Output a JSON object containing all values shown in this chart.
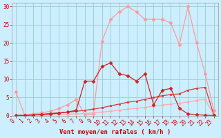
{
  "xlabel": "Vent moyen/en rafales ( km/h )",
  "bg_color": "#cceeff",
  "grid_color": "#99cccc",
  "xlim": [
    -0.5,
    23.5
  ],
  "ylim": [
    0,
    31
  ],
  "xticks": [
    0,
    1,
    2,
    3,
    4,
    5,
    6,
    7,
    8,
    9,
    10,
    11,
    12,
    13,
    14,
    15,
    16,
    17,
    18,
    19,
    20,
    21,
    22,
    23
  ],
  "yticks": [
    0,
    5,
    10,
    15,
    20,
    25,
    30
  ],
  "line1_x": [
    0,
    1,
    2,
    3,
    4,
    5,
    6,
    7,
    8,
    9,
    10,
    11,
    12,
    13,
    14,
    15,
    16,
    17,
    18,
    19,
    20,
    21,
    22,
    23
  ],
  "line1_y": [
    6.5,
    0.2,
    0.5,
    0.8,
    1.2,
    2.0,
    3.0,
    4.5,
    0.3,
    0.5,
    20.5,
    26.5,
    28.5,
    30.0,
    28.5,
    26.5,
    26.5,
    26.5,
    25.5,
    19.5,
    30.0,
    20.0,
    11.5,
    1.5
  ],
  "line1_color": "#ff9999",
  "line1_lw": 0.9,
  "line1_marker": "D",
  "line1_ms": 2.5,
  "line2_x": [
    0,
    1,
    2,
    3,
    4,
    5,
    6,
    7,
    8,
    9,
    10,
    11,
    12,
    13,
    14,
    15,
    16,
    17,
    18,
    19,
    20,
    21,
    22,
    23
  ],
  "line2_y": [
    0.1,
    0.1,
    0.2,
    0.3,
    0.5,
    0.7,
    1.0,
    1.5,
    9.5,
    9.5,
    13.5,
    14.5,
    11.5,
    11.0,
    9.5,
    11.5,
    3.0,
    7.0,
    7.5,
    2.0,
    0.5,
    0.3,
    0.1,
    0.1
  ],
  "line2_color": "#cc2222",
  "line2_lw": 0.9,
  "line2_marker": "D",
  "line2_ms": 2.5,
  "line3_x": [
    0,
    1,
    2,
    3,
    4,
    5,
    6,
    7,
    8,
    9,
    10,
    11,
    12,
    13,
    14,
    15,
    16,
    17,
    18,
    19,
    20,
    21,
    22,
    23
  ],
  "line3_y": [
    0.0,
    0.1,
    0.2,
    0.4,
    0.6,
    0.8,
    1.0,
    1.2,
    1.5,
    1.8,
    2.2,
    2.7,
    3.2,
    3.7,
    4.0,
    4.5,
    5.0,
    5.5,
    5.8,
    6.0,
    7.0,
    7.5,
    7.8,
    0.2
  ],
  "line3_color": "#dd3333",
  "line3_lw": 0.9,
  "line3_marker": "s",
  "line3_ms": 1.8,
  "line4_x": [
    0,
    1,
    2,
    3,
    4,
    5,
    6,
    7,
    8,
    9,
    10,
    11,
    12,
    13,
    14,
    15,
    16,
    17,
    18,
    19,
    20,
    21,
    22,
    23
  ],
  "line4_y": [
    0.0,
    0.05,
    0.1,
    0.15,
    0.2,
    0.3,
    0.4,
    0.5,
    0.6,
    0.8,
    1.0,
    1.2,
    1.5,
    1.8,
    2.0,
    2.3,
    2.6,
    2.9,
    3.2,
    3.4,
    3.8,
    4.2,
    4.5,
    0.1
  ],
  "line4_color": "#ffaaaa",
  "line4_lw": 0.9,
  "line4_marker": "D",
  "line4_ms": 1.8,
  "xlabel_color": "#cc0000",
  "tick_color": "#cc0000",
  "axis_label_fontsize": 6.5,
  "tick_fontsize": 5.5
}
